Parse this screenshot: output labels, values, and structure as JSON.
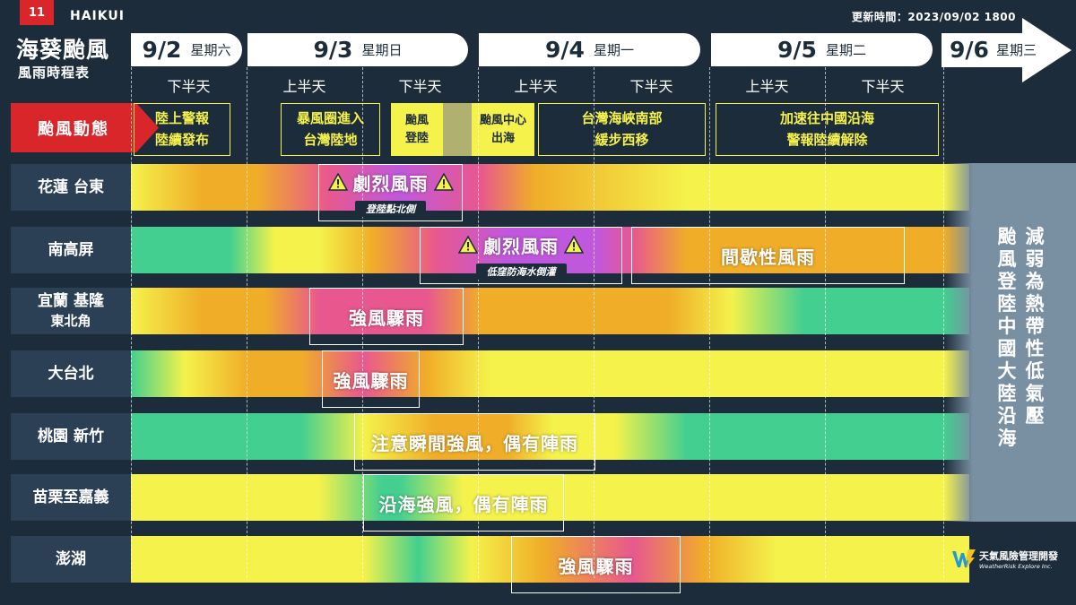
{
  "page": {
    "slide_number": "11",
    "code_name": "HAIKUI",
    "title": "海葵颱風",
    "subtitle": "風雨時程表",
    "update_time": "更新時間：2023/09/02 1800"
  },
  "days": [
    {
      "date": "9/2",
      "weekday": "星期六"
    },
    {
      "date": "9/3",
      "weekday": "星期日"
    },
    {
      "date": "9/4",
      "weekday": "星期一"
    },
    {
      "date": "9/5",
      "weekday": "星期二"
    },
    {
      "date": "9/6",
      "weekday": "星期三"
    }
  ],
  "halves": [
    "下半天",
    "上半天",
    "下半天",
    "上半天",
    "下半天",
    "上半天",
    "下半天"
  ],
  "typhoon_status": {
    "label": "颱風動態",
    "phases": [
      "陸上警報\n陸續發布",
      "暴風圈進入\n台灣陸地",
      "颱風\n登陸",
      "颱風中心\n出海",
      "台灣海峽南部\n緩步西移",
      "加速往中國沿海\n警報陸續解除"
    ]
  },
  "regions": [
    {
      "name": "花蓮 台東",
      "events": [
        {
          "main": "劇烈風雨",
          "note": "登陸點北側",
          "warning": true
        }
      ]
    },
    {
      "name": "南高屏",
      "events": [
        {
          "main": "劇烈風雨",
          "note": "低窪防海水倒灌",
          "warning": true
        },
        {
          "main": "間歇性風雨",
          "note": "",
          "warning": false
        }
      ]
    },
    {
      "name": "宜蘭 基隆",
      "name2": "東北角",
      "events": [
        {
          "main": "強風驟雨",
          "note": "",
          "warning": false
        }
      ]
    },
    {
      "name": "大台北",
      "events": [
        {
          "main": "強風驟雨",
          "note": "",
          "warning": false
        }
      ]
    },
    {
      "name": "桃園 新竹",
      "events": [
        {
          "main": "注意瞬間強風，偶有陣雨",
          "note": "",
          "warning": false
        }
      ]
    },
    {
      "name": "苗栗至嘉義",
      "events": [
        {
          "main": "沿海強風，偶有陣雨",
          "note": "",
          "warning": false
        }
      ]
    },
    {
      "name": "澎湖",
      "events": [
        {
          "main": "強風驟雨",
          "note": "",
          "warning": false
        }
      ]
    }
  ],
  "outlook": {
    "col1": "減弱為熱帶性低氣壓",
    "col2": "颱風登陸中國大陸沿海"
  },
  "brand": {
    "name": "天氣風險管理開發",
    "name_en": "WeatherRisk Explore Inc."
  },
  "colors": {
    "background": "#1d2c3b",
    "accent_red": "#d9262b",
    "phase_yellow": "#f4f24b",
    "weak": "#43cf8f",
    "light": "#f4f24b",
    "moderate": "#f0ad28",
    "strong": "#e8588e",
    "severe": "#c058dd",
    "weakened_zone": "#7990a3"
  },
  "icons": [
    "warning-triangle-icon",
    "wr-logo-icon"
  ]
}
